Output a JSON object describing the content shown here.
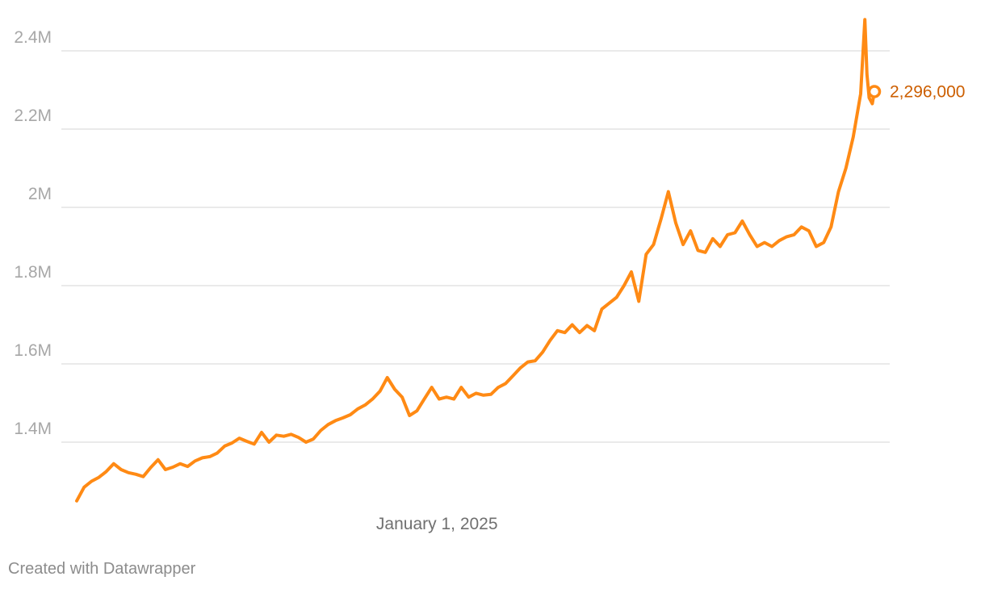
{
  "chart_data": {
    "type": "line",
    "title": "",
    "xlabel": "",
    "ylabel": "",
    "ylim": [
      1250000,
      2500000
    ],
    "grid": true,
    "y_ticks": [
      {
        "value": 1400000,
        "label": "1.4M"
      },
      {
        "value": 1600000,
        "label": "1.6M"
      },
      {
        "value": 1800000,
        "label": "1.8M"
      },
      {
        "value": 2000000,
        "label": "2M"
      },
      {
        "value": 2200000,
        "label": "2.2M"
      },
      {
        "value": 2400000,
        "label": "2.4M"
      }
    ],
    "x_ticks": [
      {
        "value": "2025-01-01",
        "label": "January 1, 2025"
      }
    ],
    "xlim": [
      "2024-01-26",
      "2026-02-19"
    ],
    "series": [
      {
        "color": "#ff8a14",
        "points": [
          [
            "2024-01-26",
            1250000
          ],
          [
            "2024-02-02",
            1285000
          ],
          [
            "2024-02-09",
            1300000
          ],
          [
            "2024-02-16",
            1310000
          ],
          [
            "2024-02-23",
            1325000
          ],
          [
            "2024-03-01",
            1345000
          ],
          [
            "2024-03-08",
            1330000
          ],
          [
            "2024-03-15",
            1322000
          ],
          [
            "2024-03-22",
            1318000
          ],
          [
            "2024-03-29",
            1312000
          ],
          [
            "2024-04-05",
            1335000
          ],
          [
            "2024-04-12",
            1355000
          ],
          [
            "2024-04-19",
            1330000
          ],
          [
            "2024-04-26",
            1336000
          ],
          [
            "2024-05-03",
            1345000
          ],
          [
            "2024-05-10",
            1338000
          ],
          [
            "2024-05-17",
            1352000
          ],
          [
            "2024-05-24",
            1360000
          ],
          [
            "2024-05-31",
            1363000
          ],
          [
            "2024-06-07",
            1372000
          ],
          [
            "2024-06-14",
            1390000
          ],
          [
            "2024-06-21",
            1398000
          ],
          [
            "2024-06-28",
            1410000
          ],
          [
            "2024-07-05",
            1402000
          ],
          [
            "2024-07-12",
            1395000
          ],
          [
            "2024-07-19",
            1425000
          ],
          [
            "2024-07-26",
            1400000
          ],
          [
            "2024-08-02",
            1418000
          ],
          [
            "2024-08-09",
            1415000
          ],
          [
            "2024-08-16",
            1420000
          ],
          [
            "2024-08-23",
            1412000
          ],
          [
            "2024-08-30",
            1400000
          ],
          [
            "2024-09-06",
            1408000
          ],
          [
            "2024-09-13",
            1430000
          ],
          [
            "2024-09-20",
            1445000
          ],
          [
            "2024-09-27",
            1455000
          ],
          [
            "2024-10-04",
            1462000
          ],
          [
            "2024-10-11",
            1470000
          ],
          [
            "2024-10-18",
            1485000
          ],
          [
            "2024-10-25",
            1495000
          ],
          [
            "2024-11-01",
            1510000
          ],
          [
            "2024-11-08",
            1530000
          ],
          [
            "2024-11-15",
            1565000
          ],
          [
            "2024-11-22",
            1535000
          ],
          [
            "2024-11-29",
            1515000
          ],
          [
            "2024-12-06",
            1468000
          ],
          [
            "2024-12-13",
            1480000
          ],
          [
            "2024-12-20",
            1510000
          ],
          [
            "2024-12-27",
            1540000
          ],
          [
            "2025-01-03",
            1510000
          ],
          [
            "2025-01-10",
            1515000
          ],
          [
            "2025-01-17",
            1510000
          ],
          [
            "2025-01-24",
            1540000
          ],
          [
            "2025-01-31",
            1515000
          ],
          [
            "2025-02-07",
            1525000
          ],
          [
            "2025-02-14",
            1520000
          ],
          [
            "2025-02-21",
            1522000
          ],
          [
            "2025-02-28",
            1540000
          ],
          [
            "2025-03-07",
            1550000
          ],
          [
            "2025-03-14",
            1570000
          ],
          [
            "2025-03-21",
            1590000
          ],
          [
            "2025-03-28",
            1605000
          ],
          [
            "2025-04-04",
            1608000
          ],
          [
            "2025-04-11",
            1630000
          ],
          [
            "2025-04-18",
            1660000
          ],
          [
            "2025-04-25",
            1685000
          ],
          [
            "2025-05-02",
            1680000
          ],
          [
            "2025-05-09",
            1700000
          ],
          [
            "2025-05-16",
            1680000
          ],
          [
            "2025-05-23",
            1698000
          ],
          [
            "2025-05-30",
            1685000
          ],
          [
            "2025-06-06",
            1740000
          ],
          [
            "2025-06-13",
            1755000
          ],
          [
            "2025-06-20",
            1770000
          ],
          [
            "2025-06-27",
            1800000
          ],
          [
            "2025-07-04",
            1835000
          ],
          [
            "2025-07-11",
            1760000
          ],
          [
            "2025-07-18",
            1880000
          ],
          [
            "2025-07-25",
            1905000
          ],
          [
            "2025-08-01",
            1970000
          ],
          [
            "2025-08-08",
            2040000
          ],
          [
            "2025-08-15",
            1960000
          ],
          [
            "2025-08-22",
            1905000
          ],
          [
            "2025-08-29",
            1940000
          ],
          [
            "2025-09-05",
            1890000
          ],
          [
            "2025-09-12",
            1885000
          ],
          [
            "2025-09-19",
            1920000
          ],
          [
            "2025-09-26",
            1900000
          ],
          [
            "2025-10-03",
            1930000
          ],
          [
            "2025-10-10",
            1935000
          ],
          [
            "2025-10-17",
            1965000
          ],
          [
            "2025-10-24",
            1930000
          ],
          [
            "2025-10-31",
            1900000
          ],
          [
            "2025-11-07",
            1910000
          ],
          [
            "2025-11-14",
            1900000
          ],
          [
            "2025-11-21",
            1915000
          ],
          [
            "2025-11-28",
            1925000
          ],
          [
            "2025-12-05",
            1930000
          ],
          [
            "2025-12-12",
            1950000
          ],
          [
            "2025-12-19",
            1940000
          ],
          [
            "2025-12-26",
            1900000
          ],
          [
            "2026-01-02",
            1910000
          ],
          [
            "2026-01-09",
            1950000
          ],
          [
            "2026-01-16",
            2040000
          ],
          [
            "2026-01-23",
            2100000
          ],
          [
            "2026-01-30",
            2180000
          ],
          [
            "2026-02-06",
            2290000
          ],
          [
            "2026-02-10",
            2480000
          ],
          [
            "2026-02-12",
            2340000
          ],
          [
            "2026-02-14",
            2280000
          ],
          [
            "2026-02-17",
            2265000
          ],
          [
            "2026-02-19",
            2296000
          ]
        ]
      }
    ],
    "end_label": {
      "value": 2296000,
      "label": "2,296,000"
    }
  },
  "credit": "Created with Datawrapper"
}
